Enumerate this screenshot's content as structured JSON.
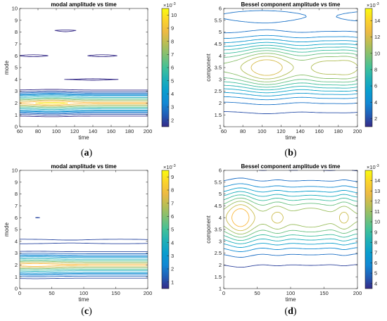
{
  "captions": [
    {
      "open": "(",
      "letter": "a",
      "close": ")"
    },
    {
      "open": "(",
      "letter": "b",
      "close": ")"
    },
    {
      "open": "(",
      "letter": "c",
      "close": ")"
    },
    {
      "open": "(",
      "letter": "d",
      "close": ")"
    }
  ],
  "chart_data": [
    {
      "type": "contour",
      "title": "modal amplitude vs time",
      "xlabel": "time",
      "ylabel": "mode",
      "xlim": [
        60,
        200
      ],
      "ylim": [
        0,
        10
      ],
      "xticks": [
        60,
        80,
        100,
        120,
        140,
        160,
        180,
        200
      ],
      "yticks": [
        0,
        1,
        2,
        3,
        4,
        5,
        6,
        7,
        8,
        9,
        10
      ],
      "colorbar": {
        "min": 1.5,
        "max": 10.5,
        "ticks": [
          2,
          3,
          4,
          5,
          6,
          7,
          8,
          9,
          10
        ],
        "exponent": "×10^-3"
      },
      "colormap": "parula",
      "hot_spot": {
        "x": 95,
        "y": 2,
        "level": 10.5
      }
    },
    {
      "type": "contour",
      "title": "Bessel component amplitude vs time",
      "xlabel": "time",
      "ylabel": "component",
      "xlim": [
        60,
        200
      ],
      "ylim": [
        1,
        6
      ],
      "xticks": [
        60,
        80,
        100,
        120,
        140,
        160,
        180,
        200
      ],
      "yticks": [
        1,
        1.5,
        2,
        2.5,
        3,
        3.5,
        4,
        4.5,
        5,
        5.5,
        6
      ],
      "colorbar": {
        "min": 1,
        "max": 15.5,
        "ticks": [
          2,
          4,
          6,
          8,
          10,
          12,
          14
        ],
        "exponent": "×10^-3"
      },
      "colormap": "parula",
      "hot_spot": {
        "x": 105,
        "y": 3.5,
        "level": 13
      }
    },
    {
      "type": "contour",
      "title": "modal amplitude vs time",
      "xlabel": "time",
      "ylabel": "mode",
      "xlim": [
        0,
        200
      ],
      "ylim": [
        0,
        10
      ],
      "xticks": [
        0,
        50,
        100,
        150,
        200
      ],
      "yticks": [
        0,
        1,
        2,
        3,
        4,
        5,
        6,
        7,
        8,
        9,
        10
      ],
      "colorbar": {
        "min": 0.5,
        "max": 9.5,
        "ticks": [
          1,
          2,
          3,
          4,
          5,
          6,
          7,
          8,
          9
        ],
        "exponent": "×10^-3"
      },
      "colormap": "parula",
      "hot_spot": {
        "x": 25,
        "y": 2,
        "level": 9
      }
    },
    {
      "type": "contour",
      "title": "Bessel component amplitude vs time",
      "xlabel": "time",
      "ylabel": "component",
      "xlim": [
        0,
        200
      ],
      "ylim": [
        1,
        6
      ],
      "xticks": [
        0,
        50,
        100,
        150,
        200
      ],
      "yticks": [
        1,
        1.5,
        2,
        2.5,
        3,
        3.5,
        4,
        4.5,
        5,
        5.5,
        6
      ],
      "colorbar": {
        "min": 3.5,
        "max": 15,
        "ticks": [
          4,
          5,
          6,
          7,
          8,
          9,
          10,
          11,
          12,
          13,
          14
        ],
        "exponent": "×10^-3"
      },
      "colormap": "parula",
      "hot_spot": {
        "x": 25,
        "y": 4,
        "level": 14
      }
    }
  ]
}
